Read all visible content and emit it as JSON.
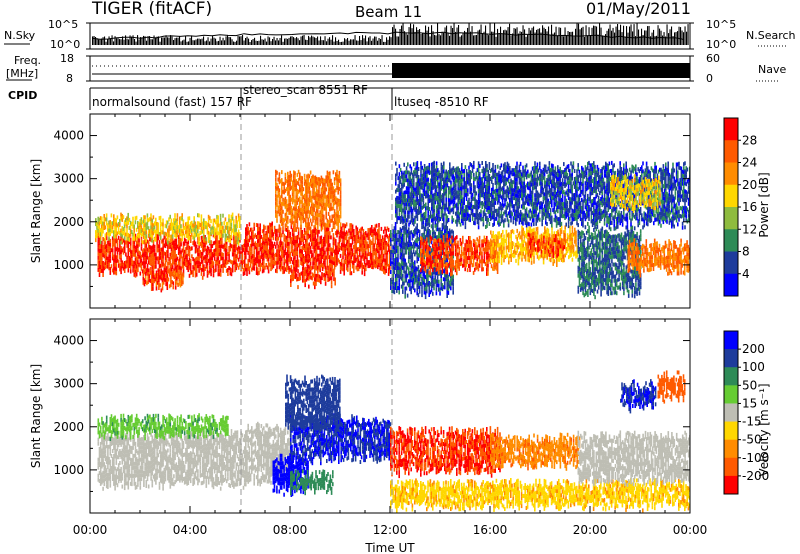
{
  "header": {
    "radar": "TIGER (fitACF)",
    "beam": "Beam 11",
    "date": "01/May/2011"
  },
  "nsky_panel": {
    "left_label": "N.Sky",
    "right_label": "N.Search",
    "left_ticks": [
      "10^5",
      "10^0"
    ],
    "right_ticks": [
      "10^5",
      "10^0"
    ]
  },
  "freq_panel": {
    "left_label_1": "Freq.",
    "left_label_2": "[MHz]",
    "right_label": "Nave",
    "left_ticks": [
      "18",
      "8"
    ],
    "right_ticks": [
      "60",
      "0"
    ]
  },
  "cpid": {
    "label": "CPID",
    "segments": [
      {
        "name": "normalsound (fast) 157 RF",
        "start_hour": 0,
        "end_hour": 6
      },
      {
        "name": "stereo_scan 8551 RF",
        "start_hour": 6,
        "end_hour": 12
      },
      {
        "name": "ltuseq -8510 RF",
        "start_hour": 12,
        "end_hour": 24
      }
    ]
  },
  "power_colorbar": {
    "label": "Power [dB]",
    "ticks": [
      "28",
      "24",
      "20",
      "16",
      "12",
      "8",
      "4"
    ],
    "colors": [
      "#ff0000",
      "#ff5a00",
      "#ff8c00",
      "#ffd700",
      "#8fbc3f",
      "#2e8b57",
      "#1e3c9c",
      "#0000ff"
    ]
  },
  "velocity_colorbar": {
    "label": "Velocity [m s⁻¹]",
    "ticks": [
      "200",
      "100",
      "50",
      "15",
      "-15",
      "-50",
      "-100",
      "-200"
    ],
    "colors": [
      "#0000ff",
      "#1e3c9c",
      "#2e8b57",
      "#66cc33",
      "#bebeb4",
      "#ffd700",
      "#ff8c00",
      "#ff5a00",
      "#ff0000"
    ]
  },
  "axes": {
    "ylabel": "Slant Range [km]",
    "xlabel": "Time UT",
    "yticks": [
      "4000",
      "3000",
      "2000",
      "1000"
    ],
    "xticks": [
      "00:00",
      "04:00",
      "08:00",
      "12:00",
      "16:00",
      "20:00",
      "00:00"
    ]
  },
  "chart_data": {
    "type": "heatmap",
    "title": "TIGER (fitACF) Beam 11 01/May/2011",
    "xlabel": "Time UT",
    "ylabel": "Slant Range [km]",
    "xlim_hours": [
      0,
      24
    ],
    "ylim_km": [
      0,
      4500
    ],
    "dashed_markers_hours": [
      6,
      12
    ],
    "power_blobs": [
      {
        "t0": 0.3,
        "t1": 6.2,
        "r0": 850,
        "r1": 1650,
        "db": 28
      },
      {
        "t0": 2.1,
        "t1": 3.7,
        "r0": 530,
        "r1": 900,
        "db": 27
      },
      {
        "t0": 0.2,
        "t1": 6.0,
        "r0": 1650,
        "r1": 2100,
        "db": 18
      },
      {
        "t0": 6.2,
        "t1": 12.0,
        "r0": 900,
        "r1": 1900,
        "db": 28
      },
      {
        "t0": 7.4,
        "t1": 10.0,
        "r0": 1900,
        "r1": 3100,
        "db": 24
      },
      {
        "t0": 8.0,
        "t1": 9.8,
        "r0": 600,
        "r1": 900,
        "db": 28
      },
      {
        "t0": 12.0,
        "t1": 14.5,
        "r0": 400,
        "r1": 1900,
        "db": 6
      },
      {
        "t0": 13.2,
        "t1": 16.3,
        "r0": 900,
        "r1": 1600,
        "db": 27
      },
      {
        "t0": 16.0,
        "t1": 19.5,
        "r0": 1150,
        "r1": 1800,
        "db": 20
      },
      {
        "t0": 17.5,
        "t1": 19.0,
        "r0": 1300,
        "r1": 1650,
        "db": 27
      },
      {
        "t0": 19.5,
        "t1": 22.0,
        "r0": 400,
        "r1": 1800,
        "db": 8
      },
      {
        "t0": 21.5,
        "t1": 24.0,
        "r0": 900,
        "r1": 1500,
        "db": 24
      },
      {
        "t0": 12.2,
        "t1": 24.0,
        "r0": 2000,
        "r1": 3300,
        "db": 6
      },
      {
        "t0": 20.8,
        "t1": 22.8,
        "r0": 2400,
        "r1": 3000,
        "db": 18
      }
    ],
    "velocity_blobs": [
      {
        "t0": 0.3,
        "t1": 6.2,
        "r0": 700,
        "r1": 1850,
        "v": 0
      },
      {
        "t0": 0.3,
        "t1": 5.5,
        "r0": 1850,
        "r1": 2200,
        "v": 40
      },
      {
        "t0": 6.2,
        "t1": 8.0,
        "r0": 800,
        "r1": 2000,
        "v": 0
      },
      {
        "t0": 7.3,
        "t1": 8.7,
        "r0": 550,
        "r1": 1300,
        "v": 220
      },
      {
        "t0": 8.0,
        "t1": 12.0,
        "r0": 1300,
        "r1": 2200,
        "v": 200
      },
      {
        "t0": 7.8,
        "t1": 10.0,
        "r0": 2000,
        "r1": 3100,
        "v": 120
      },
      {
        "t0": 8.0,
        "t1": 9.7,
        "r0": 550,
        "r1": 900,
        "v": 80
      },
      {
        "t0": 12.0,
        "t1": 16.4,
        "r0": 1000,
        "r1": 1900,
        "v": -200
      },
      {
        "t0": 16.0,
        "t1": 19.6,
        "r0": 1150,
        "r1": 1750,
        "v": -90
      },
      {
        "t0": 12.0,
        "t1": 24.0,
        "r0": 200,
        "r1": 700,
        "v": -40
      },
      {
        "t0": 19.5,
        "t1": 24.0,
        "r0": 800,
        "r1": 1800,
        "v": 0
      },
      {
        "t0": 21.2,
        "t1": 22.6,
        "r0": 2500,
        "r1": 3000,
        "v": 200
      },
      {
        "t0": 22.7,
        "t1": 23.8,
        "r0": 2700,
        "r1": 3200,
        "v": -180
      }
    ]
  }
}
